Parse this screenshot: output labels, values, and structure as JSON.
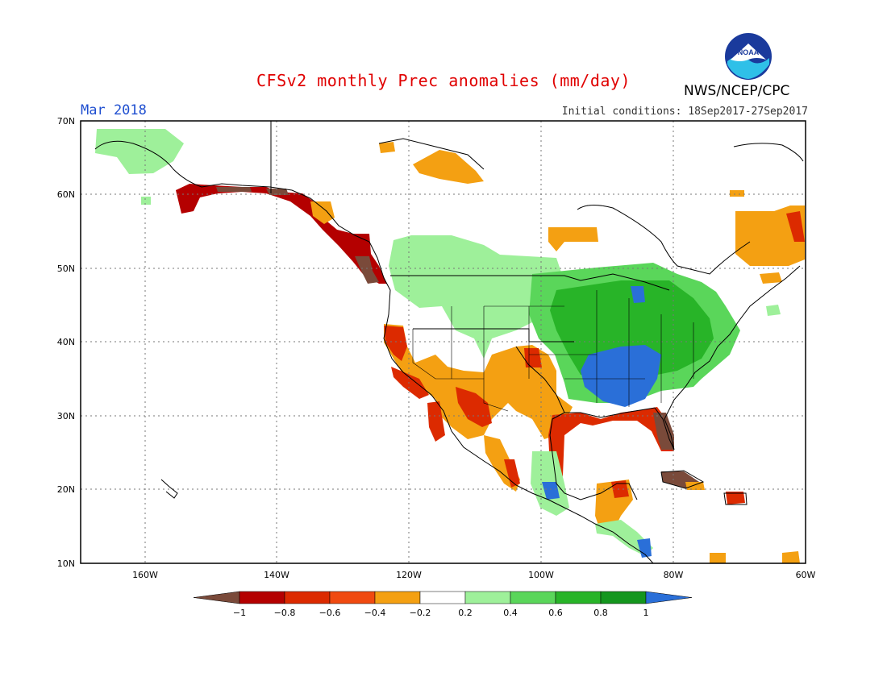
{
  "header": {
    "title": "CFSv2 monthly Prec anomalies (mm/day)",
    "month": "Mar 2018",
    "initial_conditions": "Initial conditions: 18Sep2017-27Sep2017",
    "agency": "NWS/NCEP/CPC",
    "logo_text": "NOAA"
  },
  "map": {
    "lat_labels": [
      "70N",
      "60N",
      "50N",
      "40N",
      "30N",
      "20N",
      "10N"
    ],
    "lon_labels": [
      "160W",
      "140W",
      "120W",
      "100W",
      "80W",
      "60W"
    ]
  },
  "colorbar": {
    "labels": [
      "−1",
      "−0.8",
      "−0.6",
      "−0.4",
      "−0.2",
      "0.2",
      "0.4",
      "0.6",
      "0.8",
      "1"
    ],
    "colors": [
      "#7a4a3a",
      "#b40000",
      "#dc2a00",
      "#f04a10",
      "#f4a012",
      "#ffffff",
      "#9ef09a",
      "#5ad65a",
      "#28b428",
      "#14961e",
      "#2a6fd8"
    ]
  }
}
